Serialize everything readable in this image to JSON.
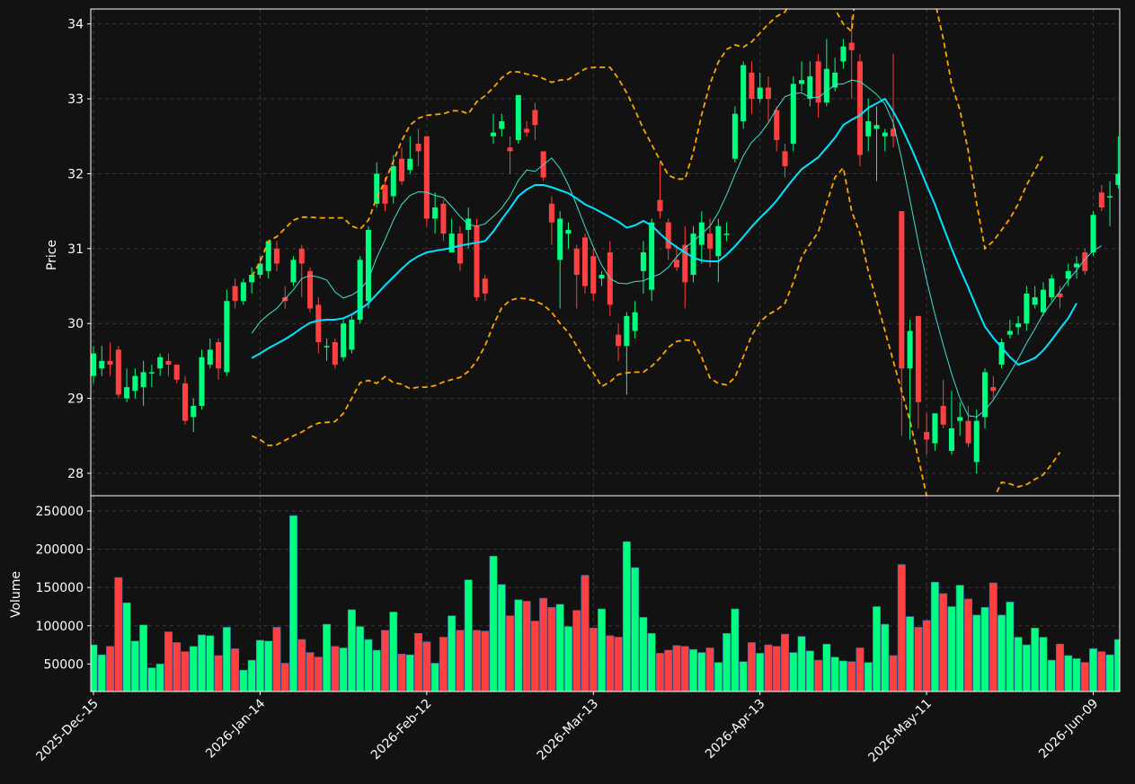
{
  "chart_data": {
    "type": "candlestick",
    "price_panel": {
      "ylabel": "Price",
      "ylim": [
        27.7,
        34.2
      ],
      "yticks": [
        28,
        29,
        30,
        31,
        32,
        33,
        34
      ],
      "grid": true
    },
    "volume_panel": {
      "ylabel": "Volume",
      "ylim": [
        14000,
        270000
      ],
      "yticks": [
        50000,
        100000,
        150000,
        200000,
        250000
      ],
      "grid": true
    },
    "x_tick_labels": [
      "2025-Dec-15",
      "2026-Jan-14",
      "2026-Feb-12",
      "2026-Mar-13",
      "2026-Apr-13",
      "2026-May-11",
      "2026-Jun-09"
    ],
    "x_tick_indices": [
      0,
      20,
      40,
      60,
      80,
      100,
      120
    ],
    "colors": {
      "up": "#00ff7f",
      "down": "#ff4040",
      "ma_fast": "#40e0d0",
      "ma_slow": "#00e5ff",
      "bands": "#ffa500",
      "background": "#121212"
    },
    "candles": [
      [
        29.3,
        29.6,
        29.7,
        29.2
      ],
      [
        29.4,
        29.5,
        29.7,
        29.3
      ],
      [
        29.5,
        29.45,
        29.75,
        29.3
      ],
      [
        29.65,
        29.05,
        29.7,
        29.0
      ],
      [
        29.0,
        29.15,
        29.4,
        28.95
      ],
      [
        29.1,
        29.3,
        29.4,
        29.0
      ],
      [
        29.15,
        29.35,
        29.5,
        28.9
      ],
      [
        29.35,
        29.35,
        29.45,
        29.15
      ],
      [
        29.4,
        29.55,
        29.6,
        29.3
      ],
      [
        29.5,
        29.45,
        29.6,
        29.3
      ],
      [
        29.45,
        29.25,
        29.45,
        29.2
      ],
      [
        29.2,
        28.7,
        29.3,
        28.65
      ],
      [
        28.75,
        28.9,
        29.0,
        28.55
      ],
      [
        28.9,
        29.55,
        29.65,
        28.85
      ],
      [
        29.45,
        29.65,
        29.8,
        29.4
      ],
      [
        29.75,
        29.4,
        29.8,
        29.25
      ],
      [
        29.35,
        30.3,
        30.45,
        29.3
      ],
      [
        30.5,
        30.3,
        30.6,
        30.2
      ],
      [
        30.3,
        30.55,
        30.6,
        30.25
      ],
      [
        30.55,
        30.65,
        30.75,
        30.4
      ],
      [
        30.65,
        30.8,
        30.9,
        30.6
      ],
      [
        30.7,
        31.1,
        31.1,
        30.6
      ],
      [
        31.0,
        30.8,
        31.1,
        30.7
      ],
      [
        30.35,
        30.3,
        30.5,
        30.2
      ],
      [
        30.55,
        30.85,
        30.9,
        30.5
      ],
      [
        31.0,
        30.8,
        31.05,
        30.35
      ],
      [
        30.7,
        30.2,
        30.75,
        30.15
      ],
      [
        30.25,
        29.75,
        30.35,
        29.6
      ],
      [
        29.7,
        29.7,
        29.8,
        29.5
      ],
      [
        29.75,
        29.45,
        29.8,
        29.4
      ],
      [
        29.55,
        30.0,
        30.05,
        29.5
      ],
      [
        29.65,
        30.05,
        30.1,
        29.6
      ],
      [
        30.05,
        30.85,
        30.9,
        30.0
      ],
      [
        30.3,
        31.25,
        31.3,
        30.2
      ],
      [
        31.6,
        32.0,
        32.15,
        31.55
      ],
      [
        31.85,
        31.6,
        31.95,
        31.5
      ],
      [
        31.7,
        32.1,
        32.25,
        31.6
      ],
      [
        32.2,
        31.9,
        32.35,
        31.85
      ],
      [
        32.05,
        32.2,
        32.5,
        32.0
      ],
      [
        32.4,
        32.3,
        32.6,
        32.1
      ],
      [
        32.5,
        31.4,
        32.5,
        31.3
      ],
      [
        31.4,
        31.55,
        31.75,
        31.2
      ],
      [
        31.6,
        31.2,
        31.65,
        31.1
      ],
      [
        30.95,
        31.2,
        31.4,
        30.95
      ],
      [
        31.2,
        30.8,
        31.3,
        30.7
      ],
      [
        31.25,
        31.4,
        31.55,
        31.0
      ],
      [
        31.3,
        30.35,
        31.4,
        30.3
      ],
      [
        30.6,
        30.4,
        30.65,
        30.3
      ],
      [
        32.5,
        32.55,
        32.8,
        32.4
      ],
      [
        32.6,
        32.7,
        32.8,
        32.5
      ],
      [
        32.35,
        32.3,
        32.5,
        32.0
      ],
      [
        32.45,
        33.05,
        33.05,
        32.4
      ],
      [
        32.6,
        32.55,
        32.7,
        32.5
      ],
      [
        32.85,
        32.65,
        32.95,
        32.45
      ],
      [
        32.3,
        31.95,
        32.3,
        31.9
      ],
      [
        31.6,
        31.35,
        31.7,
        31.05
      ],
      [
        30.85,
        31.4,
        31.5,
        30.2
      ],
      [
        31.2,
        31.25,
        31.35,
        31.0
      ],
      [
        31.0,
        30.65,
        31.05,
        30.2
      ],
      [
        31.15,
        30.5,
        31.2,
        30.4
      ],
      [
        30.9,
        30.4,
        31.0,
        30.3
      ],
      [
        30.6,
        30.65,
        30.7,
        30.5
      ],
      [
        30.95,
        30.25,
        31.1,
        30.1
      ],
      [
        29.85,
        29.7,
        30.0,
        29.5
      ],
      [
        29.7,
        30.1,
        30.15,
        29.05
      ],
      [
        29.9,
        30.15,
        30.3,
        29.8
      ],
      [
        30.7,
        30.95,
        31.1,
        30.4
      ],
      [
        30.45,
        31.35,
        31.4,
        30.3
      ],
      [
        31.65,
        31.5,
        32.15,
        31.4
      ],
      [
        31.35,
        31.0,
        31.4,
        30.85
      ],
      [
        30.85,
        30.75,
        31.05,
        30.7
      ],
      [
        31.05,
        30.55,
        31.3,
        30.2
      ],
      [
        30.65,
        31.2,
        31.3,
        30.55
      ],
      [
        31.05,
        31.35,
        31.5,
        30.8
      ],
      [
        31.2,
        31.0,
        31.4,
        30.75
      ],
      [
        30.9,
        31.3,
        31.4,
        30.55
      ],
      [
        31.2,
        31.2,
        31.35,
        31.1
      ],
      [
        32.2,
        32.8,
        32.9,
        32.15
      ],
      [
        32.7,
        33.45,
        33.5,
        32.6
      ],
      [
        33.35,
        33.0,
        33.5,
        32.8
      ],
      [
        33.0,
        33.15,
        33.35,
        32.95
      ],
      [
        33.15,
        33.0,
        33.3,
        32.7
      ],
      [
        32.85,
        32.45,
        32.9,
        32.3
      ],
      [
        32.3,
        32.1,
        32.4,
        31.95
      ],
      [
        32.4,
        33.2,
        33.3,
        32.3
      ],
      [
        33.2,
        33.25,
        33.5,
        33.1
      ],
      [
        33.0,
        33.3,
        33.5,
        32.9
      ],
      [
        33.5,
        32.95,
        33.6,
        32.75
      ],
      [
        32.95,
        33.4,
        33.8,
        32.9
      ],
      [
        33.15,
        33.35,
        33.55,
        33.1
      ],
      [
        33.5,
        33.7,
        33.8,
        33.4
      ],
      [
        33.75,
        33.65,
        34.1,
        33.0
      ],
      [
        33.5,
        32.25,
        33.6,
        32.1
      ],
      [
        32.5,
        32.7,
        33.0,
        32.3
      ],
      [
        32.6,
        32.65,
        32.9,
        31.9
      ],
      [
        32.5,
        32.55,
        32.6,
        32.3
      ],
      [
        32.6,
        32.5,
        33.6,
        32.35
      ],
      [
        31.5,
        29.4,
        31.5,
        28.5
      ],
      [
        29.4,
        29.9,
        30.05,
        28.45
      ],
      [
        30.1,
        28.95,
        30.1,
        28.6
      ],
      [
        28.55,
        28.45,
        28.8,
        28.25
      ],
      [
        28.4,
        28.8,
        28.8,
        28.3
      ],
      [
        28.9,
        28.65,
        29.25,
        28.6
      ],
      [
        28.3,
        28.6,
        29.1,
        28.25
      ],
      [
        28.7,
        28.75,
        28.95,
        28.5
      ],
      [
        28.7,
        28.4,
        28.9,
        28.35
      ],
      [
        28.15,
        28.7,
        28.85,
        28.0
      ],
      [
        28.75,
        29.35,
        29.4,
        28.6
      ],
      [
        29.15,
        29.1,
        29.3,
        29.0
      ],
      [
        29.45,
        29.75,
        29.8,
        29.4
      ],
      [
        29.85,
        29.9,
        30.05,
        29.8
      ],
      [
        29.95,
        30.0,
        30.1,
        29.85
      ],
      [
        30.0,
        30.4,
        30.5,
        29.9
      ],
      [
        30.25,
        30.35,
        30.5,
        30.2
      ],
      [
        30.15,
        30.45,
        30.55,
        30.1
      ],
      [
        30.35,
        30.6,
        30.65,
        30.3
      ],
      [
        30.4,
        30.35,
        30.5,
        30.2
      ],
      [
        30.6,
        30.7,
        30.8,
        30.5
      ],
      [
        30.75,
        30.8,
        30.9,
        30.6
      ],
      [
        30.95,
        30.7,
        31.0,
        30.65
      ],
      [
        30.95,
        31.45,
        31.5,
        30.9
      ],
      [
        31.75,
        31.55,
        31.85,
        31.5
      ],
      [
        31.7,
        31.7,
        31.9,
        31.3
      ],
      [
        31.85,
        32.0,
        32.5,
        31.8
      ]
    ],
    "volume": [
      75000,
      62000,
      73000,
      163000,
      130000,
      80000,
      101000,
      45000,
      50000,
      92000,
      78000,
      66000,
      73000,
      88000,
      87000,
      61000,
      98000,
      70000,
      42000,
      55000,
      81000,
      80000,
      98000,
      51000,
      244000,
      82000,
      65000,
      59000,
      102000,
      73000,
      71000,
      121000,
      99000,
      82000,
      68000,
      94000,
      118000,
      63000,
      62000,
      90000,
      79000,
      51000,
      85000,
      113000,
      94000,
      160000,
      94000,
      93000,
      191000,
      154000,
      113000,
      134000,
      132000,
      106000,
      136000,
      124000,
      128000,
      99000,
      120000,
      166000,
      97000,
      122000,
      87000,
      85000,
      210000,
      176000,
      111000,
      90000,
      64000,
      68000,
      74000,
      73000,
      69000,
      65000,
      71000,
      52000,
      90000,
      122000,
      53000,
      78000,
      64000,
      75000,
      73000,
      89000,
      65000,
      86000,
      67000,
      55000,
      76000,
      59000,
      54000,
      53000,
      71000,
      52000,
      125000,
      102000,
      61000,
      180000,
      112000,
      98000,
      107000,
      157000,
      142000,
      125000,
      153000,
      135000,
      114000,
      124000,
      156000,
      114000,
      131000,
      85000,
      75000,
      97000,
      85000,
      55000,
      76000,
      61000,
      57000,
      52000,
      70000,
      66000,
      62000,
      82000
    ],
    "ma_fast": [
      null,
      null,
      null,
      null,
      null,
      null,
      null,
      null,
      null,
      null,
      null,
      null,
      null,
      null,
      null,
      null,
      null,
      null,
      null,
      29.87,
      30.02,
      30.12,
      30.2,
      30.33,
      30.45,
      30.6,
      30.64,
      30.62,
      30.58,
      30.42,
      30.34,
      30.38,
      30.45,
      30.59,
      30.88,
      31.12,
      31.38,
      31.59,
      31.71,
      31.76,
      31.75,
      31.71,
      31.68,
      31.56,
      31.43,
      31.32,
      31.3,
      31.33,
      31.43,
      31.54,
      31.7,
      31.91,
      32.05,
      32.03,
      32.12,
      32.21,
      32.07,
      31.85,
      31.58,
      31.29,
      31.02,
      30.78,
      30.6,
      30.54,
      30.53,
      30.56,
      30.57,
      30.62,
      30.66,
      30.75,
      30.89,
      31.01,
      31.1,
      31.2,
      31.3,
      31.48,
      31.72,
      31.99,
      32.24,
      32.42,
      32.53,
      32.68,
      32.87,
      33.03,
      33.07,
      33.08,
      33.02,
      33.02,
      33.1,
      33.19,
      33.2,
      33.25,
      33.23,
      33.15,
      33.06,
      32.93,
      32.68,
      32.2,
      31.65,
      31.08,
      30.58,
      30.12,
      29.71,
      29.33,
      29.0,
      28.77,
      28.75,
      28.84,
      28.98,
      29.16,
      29.34,
      29.53,
      29.74,
      29.93,
      30.13,
      30.28,
      30.43,
      30.58,
      30.71,
      30.86,
      30.97,
      31.04
    ],
    "ma_slow": [
      null,
      null,
      null,
      null,
      null,
      null,
      null,
      null,
      null,
      null,
      null,
      null,
      null,
      null,
      null,
      null,
      null,
      null,
      null,
      29.54,
      29.6,
      29.67,
      29.73,
      29.79,
      29.86,
      29.94,
      30.01,
      30.04,
      30.05,
      30.05,
      30.07,
      30.12,
      30.19,
      30.27,
      30.39,
      30.51,
      30.62,
      30.73,
      30.83,
      30.9,
      30.95,
      30.97,
      30.99,
      31.01,
      31.04,
      31.06,
      31.08,
      31.1,
      31.23,
      31.39,
      31.54,
      31.7,
      31.79,
      31.85,
      31.85,
      31.82,
      31.78,
      31.74,
      31.67,
      31.59,
      31.54,
      31.48,
      31.42,
      31.36,
      31.28,
      31.31,
      31.37,
      31.31,
      31.2,
      31.1,
      31.02,
      30.95,
      30.88,
      30.84,
      30.83,
      30.83,
      30.92,
      31.03,
      31.16,
      31.29,
      31.41,
      31.52,
      31.64,
      31.79,
      31.93,
      32.06,
      32.14,
      32.22,
      32.35,
      32.48,
      32.65,
      32.72,
      32.78,
      32.88,
      32.94,
      33.0,
      32.83,
      32.62,
      32.38,
      32.12,
      31.85,
      31.59,
      31.29,
      31.0,
      30.73,
      30.48,
      30.21,
      29.96,
      29.81,
      29.68,
      29.55,
      29.45,
      29.49,
      29.54,
      29.64,
      29.78,
      29.93,
      30.07,
      30.27
    ],
    "band_upper": [
      null,
      null,
      null,
      null,
      null,
      null,
      null,
      null,
      null,
      null,
      null,
      null,
      null,
      null,
      null,
      null,
      null,
      null,
      null,
      30.63,
      30.82,
      31.1,
      31.16,
      31.27,
      31.38,
      31.42,
      31.42,
      31.41,
      31.41,
      31.41,
      31.41,
      31.3,
      31.26,
      31.38,
      31.68,
      31.9,
      32.17,
      32.44,
      32.65,
      32.74,
      32.78,
      32.79,
      32.8,
      32.84,
      32.84,
      32.8,
      32.96,
      33.04,
      33.15,
      33.28,
      33.36,
      33.36,
      33.33,
      33.31,
      33.27,
      33.22,
      33.25,
      33.26,
      33.33,
      33.4,
      33.42,
      33.42,
      33.42,
      33.27,
      33.08,
      32.85,
      32.6,
      32.39,
      32.18,
      31.98,
      31.93,
      31.93,
      32.29,
      32.79,
      33.2,
      33.49,
      33.66,
      33.72,
      33.69,
      33.76,
      33.88,
      34.0,
      34.1,
      34.16,
      34.35,
      34.4,
      34.45,
      34.4,
      34.3,
      34.2,
      34.0,
      33.9,
      35.0,
      35.5,
      35.8,
      35.6,
      35.2,
      34.9,
      34.8,
      34.7,
      34.6,
      34.3,
      33.8,
      33.2,
      32.85,
      32.3,
      31.6,
      31.0,
      31.1,
      31.25,
      31.4,
      31.6,
      31.85,
      32.05,
      32.25
    ],
    "band_lower": [
      null,
      null,
      null,
      null,
      null,
      null,
      null,
      null,
      null,
      null,
      null,
      null,
      null,
      null,
      null,
      null,
      null,
      null,
      null,
      28.5,
      28.45,
      28.37,
      28.38,
      28.44,
      28.5,
      28.55,
      28.62,
      28.67,
      28.68,
      28.69,
      28.8,
      29.0,
      29.21,
      29.24,
      29.2,
      29.29,
      29.21,
      29.19,
      29.13,
      29.15,
      29.15,
      29.17,
      29.22,
      29.25,
      29.28,
      29.36,
      29.5,
      29.7,
      29.98,
      30.21,
      30.31,
      30.34,
      30.33,
      30.3,
      30.25,
      30.15,
      30.0,
      29.88,
      29.7,
      29.5,
      29.34,
      29.16,
      29.22,
      29.32,
      29.34,
      29.35,
      29.35,
      29.43,
      29.54,
      29.68,
      29.76,
      29.78,
      29.77,
      29.55,
      29.27,
      29.2,
      29.18,
      29.28,
      29.56,
      29.84,
      30.02,
      30.12,
      30.18,
      30.27,
      30.55,
      30.89,
      31.06,
      31.22,
      31.6,
      31.95,
      32.08,
      31.5,
      31.2,
      30.7,
      30.3,
      29.9,
      29.5,
      29.1,
      28.7,
      28.2,
      27.7,
      27.4,
      27.2,
      27.0,
      27.1,
      27.25,
      27.4,
      27.5,
      27.65,
      27.88,
      27.86,
      27.82,
      27.85,
      27.92,
      27.98,
      28.12,
      28.28
    ]
  }
}
